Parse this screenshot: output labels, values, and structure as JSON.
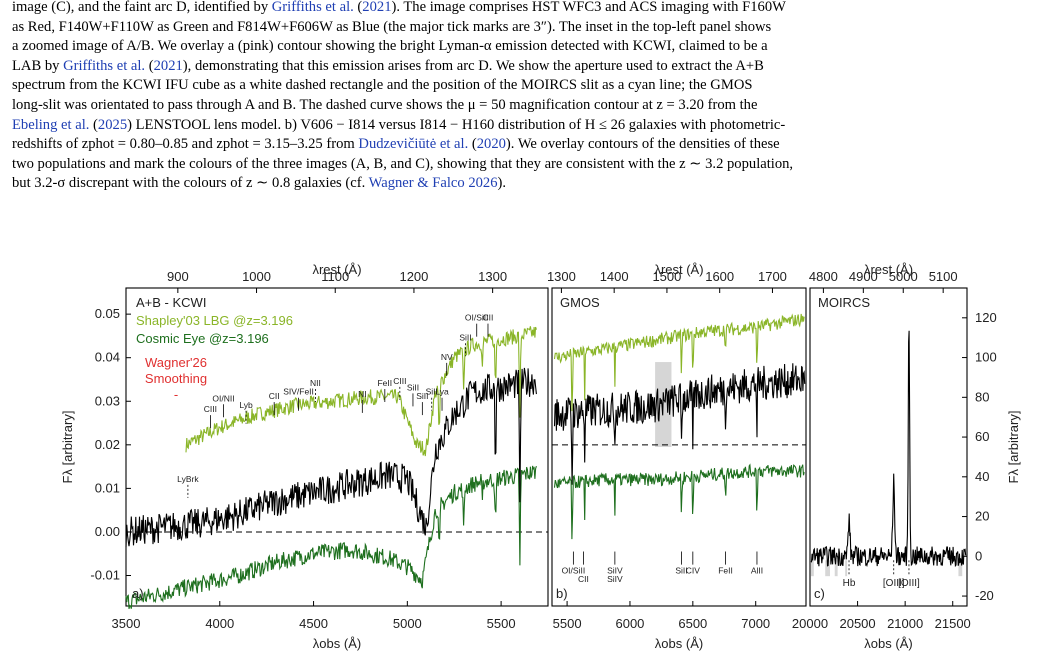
{
  "caption": {
    "lines": [
      [
        "image (C), and the faint arc D, identified by ",
        {
          "ref": "Griffiths et al."
        },
        " (",
        {
          "ref": "2021"
        },
        "). The image comprises HST WFC3 and ACS imaging with F160W"
      ],
      [
        "as Red, F140W+F110W as Green and F814W+F606W as Blue (the major tick marks are 3″). The inset in the top-left panel shows"
      ],
      [
        "a zoomed image of A/B. We overlay a (pink) contour showing the bright Lyman-α emission detected with KCWI, claimed to be a"
      ],
      [
        "LAB by ",
        {
          "ref": "Griffiths et al."
        },
        " (",
        {
          "ref": "2021"
        },
        "), demonstrating that this emission arises from arc D. We show the aperture used to extract the A+B"
      ],
      [
        "spectrum from the KCWI IFU cube as a white dashed rectangle and the position of the MOIRCS slit as a cyan line; the GMOS"
      ],
      [
        "long-slit was orientated to pass through A and B. The dashed curve shows the μ = 50 magnification contour at z = 3.20 from the"
      ],
      [
        {
          "ref": "Ebeling et al."
        },
        " (",
        {
          "ref": "2025"
        },
        ") LENSTOOL lens model. b) V606 − I814 versus I814 − H160 distribution of H ≤ 26 galaxies with photometric-"
      ],
      [
        "redshifts of zphot = 0.80–0.85 and zphot = 3.15–3.25 from ",
        {
          "ref": "Dudzevičiūtė et al."
        },
        " (",
        {
          "ref": "2020"
        },
        "). We overlay contours of the densities of these"
      ],
      [
        "two populations and mark the colours of the three images (A, B, and C), showing that they are consistent with the z ∼ 3.2 population,"
      ],
      [
        "but 3.2-σ discrepant with the colours of z ∼ 0.8 galaxies (cf. ",
        {
          "ref": "Wagner & Falco 2026"
        },
        ")."
      ]
    ]
  },
  "colors": {
    "kcwi": "#000000",
    "shapley": "#8ab528",
    "cosmic_eye": "#1e6f1e",
    "wagner": "#e03030",
    "ref_link": "#1f3fb3",
    "mask": "#d6d6d6"
  },
  "chart_data": [
    {
      "type": "line",
      "panel_label": "a)",
      "panel_title": "A+B - KCWI",
      "xlabel": "λobs (Å)",
      "xlabel_top": "λrest (Å)",
      "ylabel": "Fλ [arbitrary]",
      "xlim": [
        3500,
        5750
      ],
      "ylim": [
        -0.017,
        0.056
      ],
      "x_ticks": [
        "3500",
        "4000",
        "4500",
        "5000",
        "5500"
      ],
      "top_ticks": [
        "900",
        "1000",
        "1100",
        "1200",
        "1300"
      ],
      "y_ticks": [
        "-0.01",
        "0.00",
        "0.01",
        "0.02",
        "0.03",
        "0.04",
        "0.05"
      ],
      "y_tick_values": [
        -0.01,
        0.0,
        0.01,
        0.02,
        0.03,
        0.04,
        0.05
      ],
      "legend": [
        "Shapley'03 LBG @z=3.196",
        "Cosmic Eye @z=3.196"
      ],
      "annotation": [
        "Wagner'26",
        "Smoothing",
        "-"
      ],
      "zero_line": 0.0,
      "series": [
        {
          "name": "A+B - KCWI",
          "knots": [
            [
              3500,
              0.0
            ],
            [
              3700,
              0.001
            ],
            [
              3900,
              0.002
            ],
            [
              4100,
              0.004
            ],
            [
              4300,
              0.007
            ],
            [
              4500,
              0.009
            ],
            [
              4700,
              0.011
            ],
            [
              4900,
              0.013
            ],
            [
              5000,
              0.012
            ],
            [
              5100,
              0.001
            ],
            [
              5150,
              0.019
            ],
            [
              5250,
              0.027
            ],
            [
              5350,
              0.032
            ],
            [
              5450,
              0.033
            ],
            [
              5600,
              0.034
            ],
            [
              5700,
              0.035
            ]
          ]
        },
        {
          "name": "Shapley'03 LBG @z=3.196",
          "knots": [
            [
              3820,
              0.02
            ],
            [
              4000,
              0.024
            ],
            [
              4200,
              0.027
            ],
            [
              4400,
              0.029
            ],
            [
              4600,
              0.03
            ],
            [
              4800,
              0.031
            ],
            [
              4950,
              0.031
            ],
            [
              5050,
              0.02
            ],
            [
              5100,
              0.019
            ],
            [
              5150,
              0.032
            ],
            [
              5250,
              0.04
            ],
            [
              5350,
              0.043
            ],
            [
              5450,
              0.044
            ],
            [
              5600,
              0.045
            ],
            [
              5700,
              0.046
            ]
          ]
        },
        {
          "name": "Cosmic Eye @z=3.196",
          "knots": [
            [
              3500,
              -0.016
            ],
            [
              3700,
              -0.014
            ],
            [
              3900,
              -0.012
            ],
            [
              4100,
              -0.01
            ],
            [
              4300,
              -0.007
            ],
            [
              4500,
              -0.005
            ],
            [
              4700,
              -0.004
            ],
            [
              4900,
              -0.006
            ],
            [
              5000,
              -0.008
            ],
            [
              5080,
              -0.011
            ],
            [
              5150,
              0.005
            ],
            [
              5250,
              0.009
            ],
            [
              5350,
              0.011
            ],
            [
              5450,
              0.012
            ],
            [
              5600,
              0.013
            ],
            [
              5700,
              0.014
            ]
          ]
        }
      ],
      "line_labels": [
        {
          "text": "LyBrk",
          "x": 3830,
          "y": 0.0115
        },
        {
          "text": "CIII",
          "x": 3950,
          "y": 0.0275
        },
        {
          "text": "OI/NII",
          "x": 4020,
          "y": 0.03
        },
        {
          "text": "Lyb",
          "x": 4140,
          "y": 0.0285
        },
        {
          "text": "CII",
          "x": 4290,
          "y": 0.0305
        },
        {
          "text": "SIV/FeII",
          "x": 4420,
          "y": 0.0315
        },
        {
          "text": "NII",
          "x": 4510,
          "y": 0.0335
        },
        {
          "text": "NI",
          "x": 4760,
          "y": 0.031
        },
        {
          "text": "FeII",
          "x": 4880,
          "y": 0.0335
        },
        {
          "text": "CIII",
          "x": 4960,
          "y": 0.034
        },
        {
          "text": "SiII",
          "x": 5030,
          "y": 0.0325
        },
        {
          "text": "SiII",
          "x": 5080,
          "y": 0.0305
        },
        {
          "text": "SiII",
          "x": 5130,
          "y": 0.0315
        },
        {
          "text": "Lya",
          "x": 5185,
          "y": 0.0315
        },
        {
          "text": "NV",
          "x": 5210,
          "y": 0.0395
        },
        {
          "text": "SiII",
          "x": 5310,
          "y": 0.044
        },
        {
          "text": "OI/SiII",
          "x": 5370,
          "y": 0.0485
        },
        {
          "text": "CII",
          "x": 5430,
          "y": 0.0485
        }
      ]
    },
    {
      "type": "line",
      "panel_label": "b)",
      "panel_title": "GMOS",
      "xlabel": "λobs (Å)",
      "xlabel_top": "λrest (Å)",
      "xlim": [
        5380,
        7400
      ],
      "ylim": [
        -0.017,
        0.056
      ],
      "x_ticks": [
        "5500",
        "6000",
        "6500",
        "7000"
      ],
      "top_ticks": [
        "1300",
        "1400",
        "1500",
        "1600",
        "1700"
      ],
      "zero_line": 0.02,
      "mask_region": [
        6200,
        6330
      ],
      "series": [
        {
          "name": "Shapley'03 LBG @z=3.196",
          "knots": [
            [
              5400,
              0.04
            ],
            [
              5800,
              0.042
            ],
            [
              6200,
              0.044
            ],
            [
              6600,
              0.046
            ],
            [
              7000,
              0.047
            ],
            [
              7400,
              0.049
            ]
          ]
        },
        {
          "name": "A+B - GMOS",
          "knots": [
            [
              5400,
              0.027
            ],
            [
              5800,
              0.028
            ],
            [
              6200,
              0.029
            ],
            [
              6600,
              0.032
            ],
            [
              7000,
              0.034
            ],
            [
              7400,
              0.035
            ]
          ]
        },
        {
          "name": "Cosmic Eye @z=3.196",
          "knots": [
            [
              5400,
              0.011
            ],
            [
              5800,
              0.012
            ],
            [
              6200,
              0.012
            ],
            [
              6600,
              0.013
            ],
            [
              7000,
              0.014
            ],
            [
              7400,
              0.014
            ]
          ]
        }
      ],
      "line_labels": [
        {
          "text": "OI/SiII",
          "x": 5550,
          "y": -0.0095
        },
        {
          "text": "CII",
          "x": 5630,
          "y": -0.0115
        },
        {
          "text": "SiIV",
          "x": 5880,
          "y": -0.0095
        },
        {
          "text": "SiIV",
          "x": 5880,
          "y": -0.0115
        },
        {
          "text": "SiII",
          "x": 6410,
          "y": -0.0095
        },
        {
          "text": "CIV",
          "x": 6500,
          "y": -0.0095
        },
        {
          "text": "FeII",
          "x": 6760,
          "y": -0.0095
        },
        {
          "text": "AlII",
          "x": 7010,
          "y": -0.0095
        }
      ]
    },
    {
      "type": "line",
      "panel_label": "c)",
      "panel_title": "MOIRCS",
      "xlabel": "λobs (Å)",
      "xlabel_top": "λrest (Å)",
      "ylabel": "Fλ [arbitrary]",
      "xlim": [
        20000,
        21650
      ],
      "ylim": [
        -25,
        135
      ],
      "x_ticks": [
        "20000",
        "20500",
        "21000",
        "21500"
      ],
      "top_ticks": [
        "4800",
        "4900",
        "5000",
        "5100"
      ],
      "y_ticks": [
        "-20",
        "0",
        "20",
        "40",
        "60",
        "80",
        "100",
        "120"
      ],
      "y_tick_values": [
        -20,
        0,
        20,
        40,
        60,
        80,
        100,
        120
      ],
      "mask_regions": [
        [
          20010,
          20040
        ],
        [
          20160,
          20210
        ],
        [
          20260,
          20290
        ],
        [
          20370,
          20390
        ],
        [
          21560,
          21600
        ]
      ],
      "series": [
        {
          "name": "MOIRCS",
          "peaks": [
            [
              20410,
              18
            ],
            [
              20880,
              37
            ],
            [
              21040,
              121
            ]
          ]
        }
      ],
      "line_labels": [
        {
          "text": "Hb",
          "x": 20410
        },
        {
          "text": "[OIII]",
          "x": 20880
        },
        {
          "text": "[OIII]",
          "x": 21040
        }
      ]
    }
  ]
}
